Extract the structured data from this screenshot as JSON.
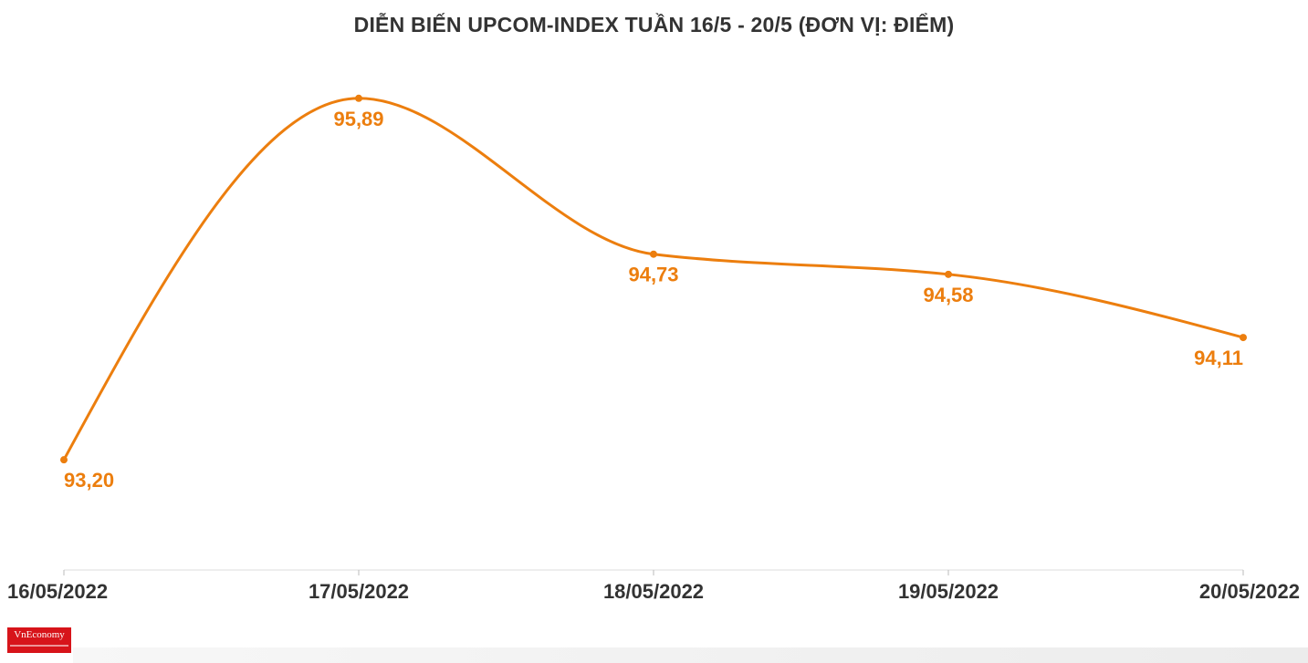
{
  "chart_data": {
    "type": "line",
    "title": "DIỄN BIẾN UPCOM-INDEX TUẦN 16/5 - 20/5 (ĐƠN VỊ: ĐIỂM)",
    "categories": [
      "16/05/2022",
      "17/05/2022",
      "18/05/2022",
      "19/05/2022",
      "20/05/2022"
    ],
    "values": [
      93.2,
      95.89,
      94.73,
      94.58,
      94.11
    ],
    "data_labels": [
      "93,20",
      "95,89",
      "94,73",
      "94,58",
      "94,11"
    ],
    "xlabel": "",
    "ylabel": "",
    "ylim": [
      92.38,
      96.35
    ],
    "grid": false,
    "legend": "none",
    "curve": "smooth",
    "colors": {
      "line": "#ec7e0e",
      "label": "#ec7e0e",
      "axis_text": "#333333",
      "axis_line": "#dddddd"
    }
  },
  "branding": {
    "logo_text": "VnEconomy"
  }
}
